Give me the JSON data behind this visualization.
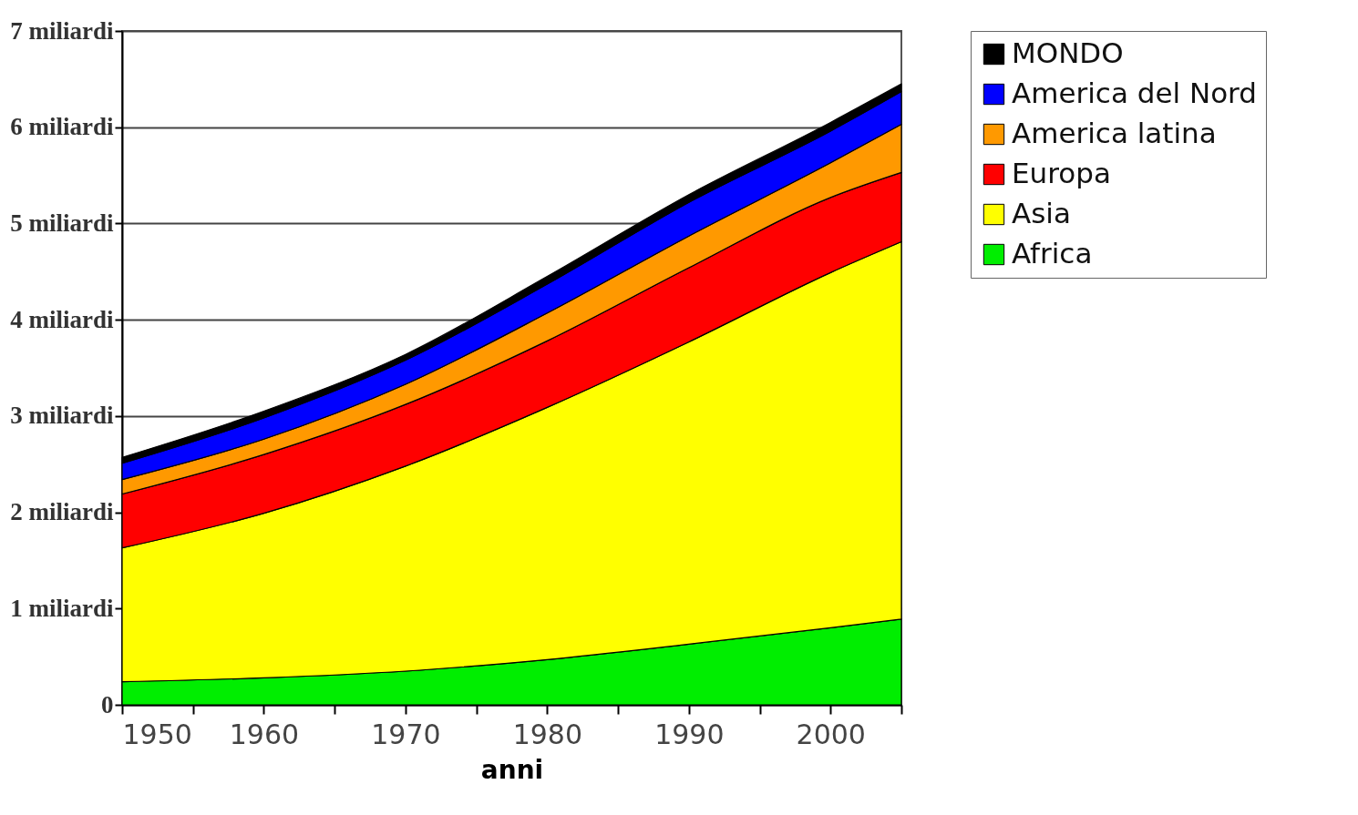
{
  "chart_data": {
    "type": "area",
    "stacked": true,
    "xlabel": "anni",
    "x": [
      1950,
      1960,
      1970,
      1980,
      1990,
      2000,
      2005
    ],
    "series": [
      {
        "name": "Africa",
        "color": "#00ee00",
        "values": [
          0.24,
          0.28,
          0.35,
          0.47,
          0.63,
          0.8,
          0.89
        ]
      },
      {
        "name": "Asia",
        "color": "#ffff00",
        "values": [
          1.39,
          1.71,
          2.13,
          2.62,
          3.14,
          3.69,
          3.92
        ]
      },
      {
        "name": "Europa",
        "color": "#ff0000",
        "values": [
          0.56,
          0.61,
          0.64,
          0.69,
          0.77,
          0.78,
          0.72
        ]
      },
      {
        "name": "America latina",
        "color": "#ff9900",
        "values": [
          0.15,
          0.16,
          0.21,
          0.29,
          0.33,
          0.36,
          0.5
        ]
      },
      {
        "name": "America del Nord",
        "color": "#0000ff",
        "values": [
          0.17,
          0.22,
          0.25,
          0.3,
          0.35,
          0.33,
          0.34
        ]
      },
      {
        "name": "MONDO",
        "color": "#000000",
        "values": [
          0.06,
          0.07,
          0.06,
          0.08,
          0.08,
          0.09,
          0.08
        ]
      }
    ],
    "xlim": [
      1950,
      2005
    ],
    "xticks": [
      1950,
      {
        "value": 1955,
        "label": null
      },
      1960,
      {
        "value": 1965,
        "label": null
      },
      1970,
      {
        "value": 1975,
        "label": null
      },
      1980,
      {
        "value": 1985,
        "label": null
      },
      1990,
      {
        "value": 1995,
        "label": null
      },
      2000,
      {
        "value": 2005,
        "label": null
      }
    ],
    "ylim": [
      0,
      7
    ],
    "yticks": [
      0,
      {
        "value": 1,
        "label": "1 miliardi"
      },
      {
        "value": 2,
        "label": "2 miliardi"
      },
      {
        "value": 3,
        "label": "3 miliardi"
      },
      {
        "value": 4,
        "label": "4 miliardi"
      },
      {
        "value": 5,
        "label": "5 miliardi"
      },
      {
        "value": 6,
        "label": "6 miliardi"
      },
      {
        "value": 7,
        "label": "7 miliardi"
      }
    ],
    "grid": "y",
    "legend": "right"
  }
}
